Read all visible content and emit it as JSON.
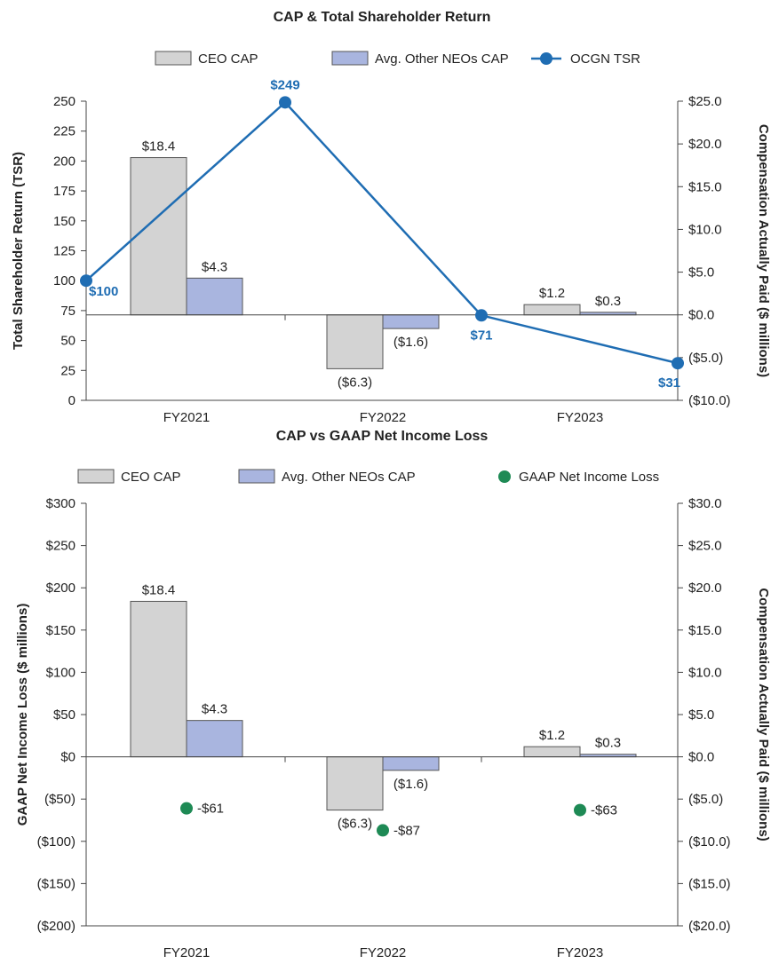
{
  "chart_data": [
    {
      "type": "bar",
      "title": "CAP & Total Shareholder Return",
      "categories": [
        "FY2021",
        "FY2022",
        "FY2023"
      ],
      "legend": [
        "CEO CAP",
        "Avg. Other NEOs CAP",
        "OCGN TSR"
      ],
      "legend_position": "top",
      "ylabel_left": "Total Shareholder Return (TSR)",
      "ylabel_right": "Compensation Actually Paid ($ millions)",
      "left_axis": {
        "ylim": [
          0,
          250
        ],
        "ticks": [
          "0",
          "25",
          "50",
          "75",
          "100",
          "125",
          "150",
          "175",
          "200",
          "225",
          "250"
        ]
      },
      "right_axis": {
        "ylim": [
          -10,
          25
        ],
        "ticks": [
          "($10.0)",
          "($5.0)",
          "$0.0",
          "$5.0",
          "$10.0",
          "$15.0",
          "$20.0",
          "$25.0"
        ]
      },
      "series": [
        {
          "name": "CEO CAP",
          "axis": "right",
          "values": [
            18.4,
            -6.3,
            1.2
          ],
          "labels": [
            "$18.4",
            "($6.3)",
            "$1.2"
          ]
        },
        {
          "name": "Avg. Other NEOs CAP",
          "axis": "right",
          "values": [
            4.3,
            -1.6,
            0.3
          ],
          "labels": [
            "$4.3",
            "($1.6)",
            "$0.3"
          ]
        },
        {
          "name": "OCGN TSR",
          "axis": "left",
          "type": "line",
          "x": [
            0,
            0.5,
            1.5,
            2.5
          ],
          "values": [
            100,
            249,
            71,
            31
          ],
          "labels": [
            "$100",
            "$249",
            "$71",
            "$31"
          ]
        }
      ],
      "colors": {
        "ceo": "#d3d3d3",
        "neo": "#a9b5df",
        "tsr": "#1f6db3"
      }
    },
    {
      "type": "bar",
      "title": "CAP vs GAAP Net Income Loss",
      "categories": [
        "FY2021",
        "FY2022",
        "FY2023"
      ],
      "legend": [
        "CEO CAP",
        "Avg. Other NEOs CAP",
        "GAAP Net Income Loss"
      ],
      "legend_position": "top",
      "ylabel_left": "GAAP Net Income Loss  ($ millions)",
      "ylabel_right": "Compensation Actually Paid ($ millions)",
      "left_axis": {
        "ylim": [
          -200,
          300
        ],
        "ticks": [
          "($200)",
          "($150)",
          "($100)",
          "($50)",
          "$0",
          "$50",
          "$100",
          "$150",
          "$200",
          "$250",
          "$300"
        ]
      },
      "right_axis": {
        "ylim": [
          -20,
          30
        ],
        "ticks": [
          "($20.0)",
          "($15.0)",
          "($10.0)",
          "($5.0)",
          "$0.0",
          "$5.0",
          "$10.0",
          "$15.0",
          "$20.0",
          "$25.0",
          "$30.0"
        ]
      },
      "series": [
        {
          "name": "CEO CAP",
          "axis": "right",
          "values": [
            18.4,
            -6.3,
            1.2
          ],
          "labels": [
            "$18.4",
            "($6.3)",
            "$1.2"
          ]
        },
        {
          "name": "Avg. Other NEOs CAP",
          "axis": "right",
          "values": [
            4.3,
            -1.6,
            0.3
          ],
          "labels": [
            "$4.3",
            "($1.6)",
            "$0.3"
          ]
        },
        {
          "name": "GAAP Net Income Loss",
          "axis": "left",
          "type": "scatter",
          "values": [
            -61,
            -87,
            -63
          ],
          "labels": [
            "-$61",
            "-$87",
            "-$63"
          ]
        }
      ],
      "colors": {
        "ceo": "#d3d3d3",
        "neo": "#a9b5df",
        "dot": "#1e8a55"
      }
    }
  ]
}
